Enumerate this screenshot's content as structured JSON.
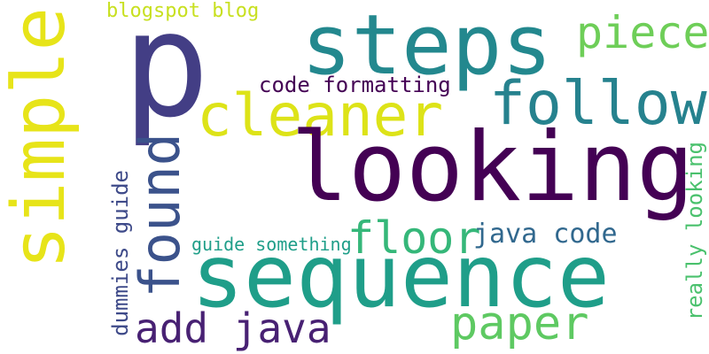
{
  "words": {
    "p": "p",
    "steps": "steps",
    "looking": "looking",
    "sequence": "sequence",
    "simple": "simple",
    "cleaner": "cleaner",
    "follow": "follow",
    "found": "found",
    "floor": "floor",
    "piece": "piece",
    "paper": "paper",
    "add_java": "add java",
    "java_code": "java code",
    "code_formatting": "code formatting",
    "blogspot_blog": "blogspot blog",
    "guide_something": "guide something",
    "dummies_guide": "dummies guide",
    "really_looking": "really looking"
  },
  "colors": {
    "p": "#433e85",
    "steps": "#23888e",
    "looking": "#440154",
    "sequence": "#1f9e89",
    "simple": "#e7e419",
    "cleaner": "#dde318",
    "follow": "#26828e",
    "found": "#3b528b",
    "floor": "#35b779",
    "piece": "#6ece58",
    "paper": "#5ec962",
    "add_java": "#482173",
    "java_code": "#31688e",
    "code_formatting": "#440154",
    "blogspot_blog": "#c8e020",
    "guide_something": "#1f9e89",
    "dummies_guide": "#3e4a89",
    "really_looking": "#4ac16d"
  }
}
